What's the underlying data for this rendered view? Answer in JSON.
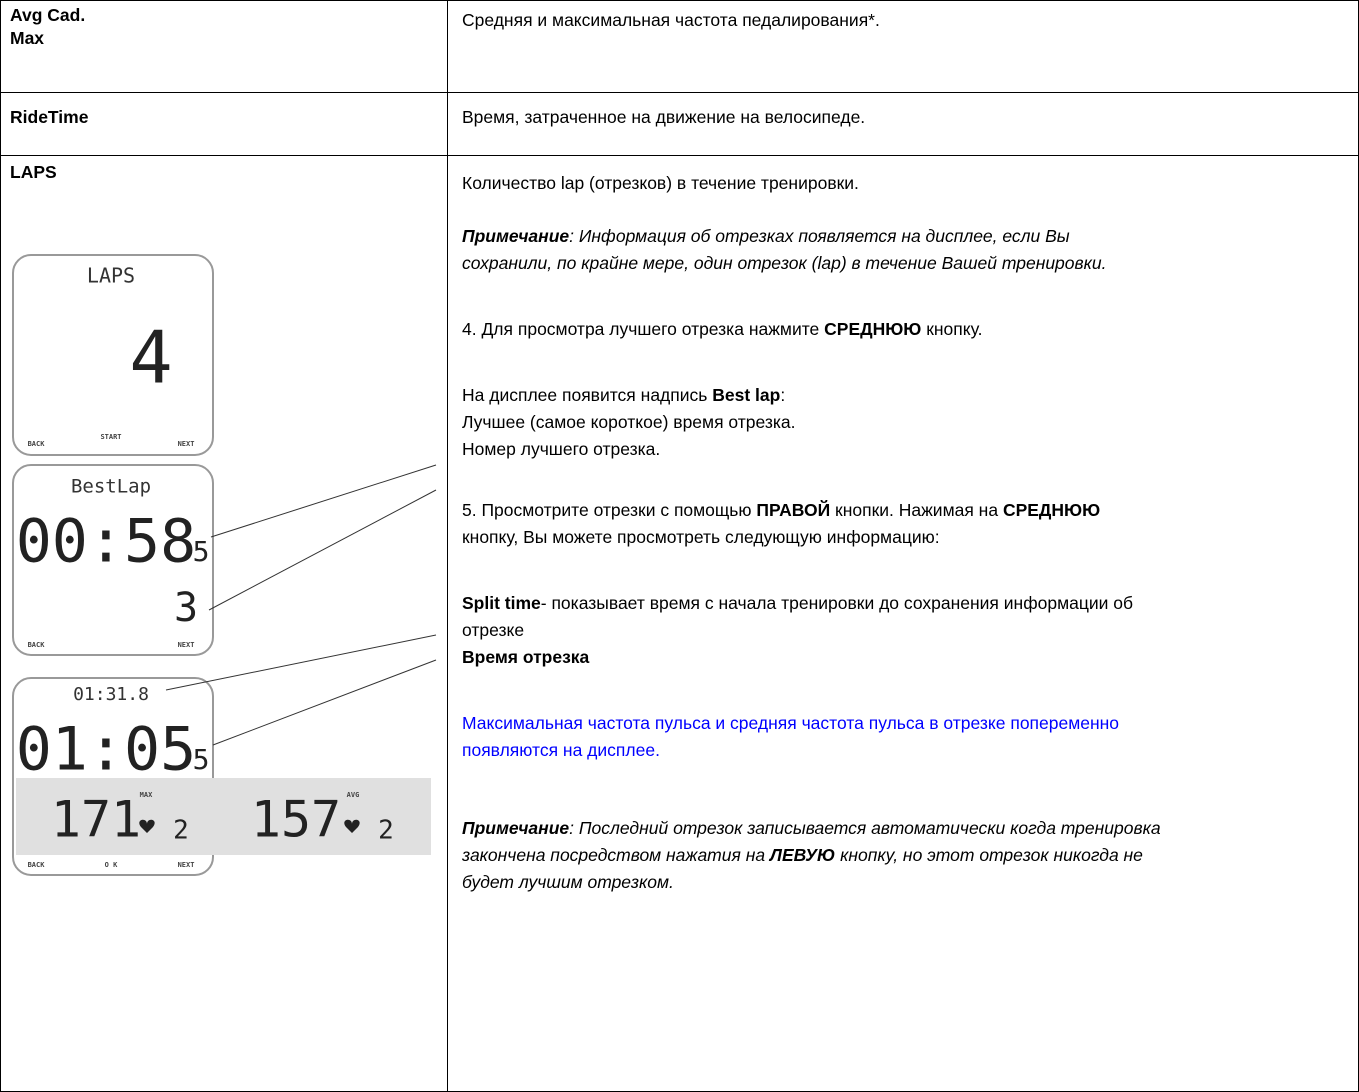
{
  "table": {
    "rows": [
      {
        "left": [
          "Avg Cad.",
          "Max"
        ],
        "right": [
          {
            "lines": [
              [
                {
                  "text": "Средняя и максимальная частота педалирования*."
                }
              ]
            ]
          }
        ]
      },
      {
        "left": [
          "RideTime"
        ],
        "right": [
          {
            "lines": [
              [
                {
                  "text": "Время, затраченное на движение на велосипеде."
                }
              ]
            ]
          }
        ]
      },
      {
        "left": [
          "LAPS"
        ],
        "right": [
          {
            "lines": [
              [
                {
                  "text": "Количество lap (отрезков) в течение тренировки."
                }
              ]
            ]
          },
          {
            "italic": true,
            "lines": [
              [
                {
                  "text": "Примечание",
                  "bold": true
                },
                {
                  "text": ": Информация об отрезках появляется на дисплее, если Вы"
                }
              ],
              [
                {
                  "text": "сохранили, по крайне мере, один отрезок (lap) в течение Вашей тренировки."
                }
              ]
            ]
          },
          {
            "lines": [
              [
                {
                  "text": "4. Для просмотра лучшего отрезка нажмите "
                },
                {
                  "text": "СРЕДНЮЮ",
                  "bold": true
                },
                {
                  "text": " кнопку."
                }
              ]
            ]
          },
          {
            "lines": [
              [
                {
                  "text": "На дисплее появится надпись "
                },
                {
                  "text": "Best lap",
                  "bold": true
                },
                {
                  "text": ":"
                }
              ],
              [
                {
                  "text": "Лучшее (самое короткое) время отрезка."
                }
              ],
              [
                {
                  "text": "Номер лучшего отрезка."
                }
              ]
            ]
          },
          {
            "lines": [
              [
                {
                  "text": "5. Просмотрите отрезки с помощью "
                },
                {
                  "text": "ПРАВОЙ",
                  "bold": true
                },
                {
                  "text": " кнопки. Нажимая на "
                },
                {
                  "text": "СРЕДНЮЮ",
                  "bold": true
                }
              ],
              [
                {
                  "text": "кнопку, Вы можете просмотреть следующую информацию:"
                }
              ]
            ]
          },
          {
            "lines": [
              [
                {
                  "text": "Split time",
                  "bold": true
                },
                {
                  "text": "- показывает время с начала тренировки до сохранения информации об"
                }
              ],
              [
                {
                  "text": "отрезке"
                }
              ],
              [
                {
                  "text": "Время отрезка",
                  "bold": true
                }
              ]
            ]
          },
          {
            "color": "#0000ff",
            "lines": [
              [
                {
                  "text": "Максимальная частота пульса и средняя частота пульса в отрезке попеременно"
                }
              ],
              [
                {
                  "text": "появляются на дисплее."
                }
              ]
            ]
          },
          {
            "italic": true,
            "lines": [
              [
                {
                  "text": "Примечание",
                  "bold": true
                },
                {
                  "text": ": Последний отрезок записывается автоматически когда тренировка"
                }
              ],
              [
                {
                  "text": "закончена посредством нажатия на "
                },
                {
                  "text": "ЛЕВУЮ",
                  "bold": true
                },
                {
                  "text": " кнопку, но этот отрезок никогда не"
                }
              ],
              [
                {
                  "text": "будет лучшим отрезком."
                }
              ]
            ]
          }
        ]
      }
    ]
  },
  "displays": [
    {
      "title": "LAPS",
      "value": "4",
      "buttons": [
        "BACK",
        "START",
        "NEXT"
      ]
    },
    {
      "title": "BestLap",
      "value": "00:58",
      "decimal": "5",
      "lap": "3",
      "buttons": [
        "BACK",
        "NEXT"
      ]
    },
    {
      "title": "01:31.8",
      "value": "01:05",
      "decimal": "5",
      "readings": [
        {
          "value": "171",
          "label": "MAX",
          "zone": "2"
        },
        {
          "value": "157",
          "label": "AVG",
          "zone": "2"
        }
      ],
      "buttons": [
        "BACK",
        "O K",
        "NEXT"
      ]
    }
  ]
}
